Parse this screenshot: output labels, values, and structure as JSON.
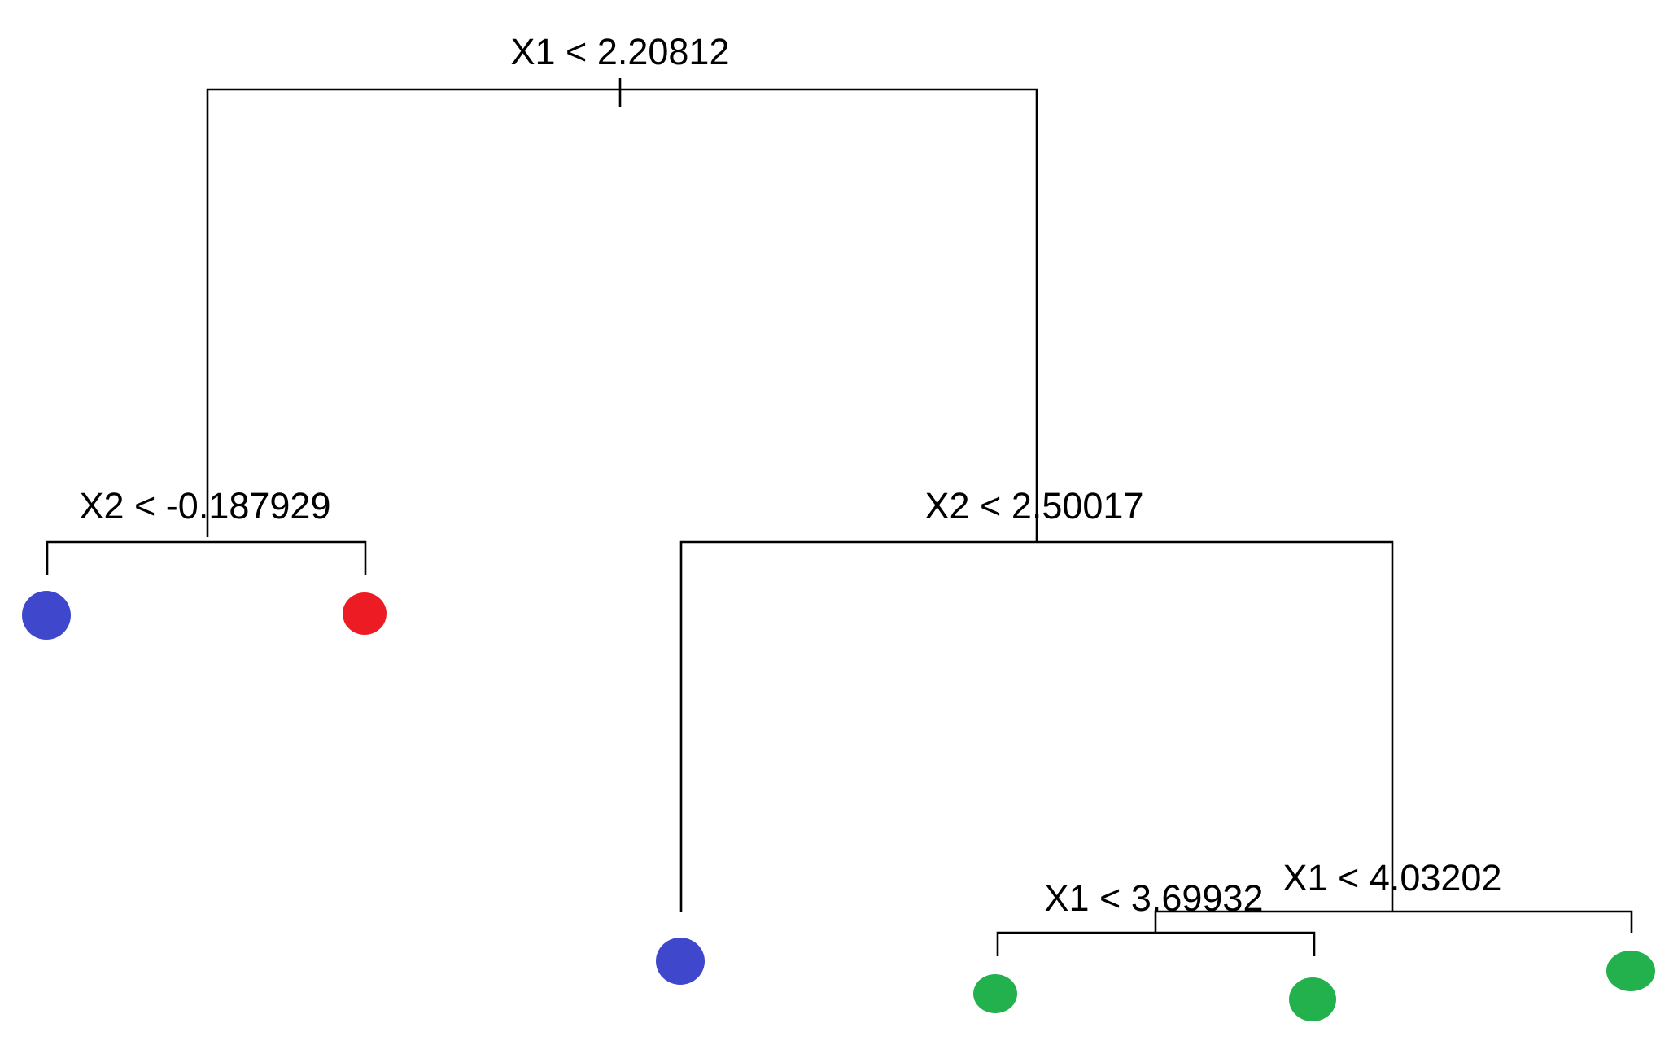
{
  "diagram": {
    "type": "decision-tree",
    "splits": [
      {
        "id": "root",
        "label": "X1 < 2.20812"
      },
      {
        "id": "left",
        "label": "X2 < -0.187929"
      },
      {
        "id": "right",
        "label": "X2 < 2.50017"
      },
      {
        "id": "right-right",
        "label": "X1 < 4.03202"
      },
      {
        "id": "right-right-left",
        "label": "X1 < 3.69932"
      }
    ],
    "leaves": [
      {
        "id": "leaf-1",
        "class": "blue",
        "color": "#3f48cc"
      },
      {
        "id": "leaf-2",
        "class": "red",
        "color": "#ed1c24"
      },
      {
        "id": "leaf-3",
        "class": "blue",
        "color": "#3f48cc"
      },
      {
        "id": "leaf-4",
        "class": "green",
        "color": "#22b14c"
      },
      {
        "id": "leaf-5",
        "class": "green",
        "color": "#22b14c"
      },
      {
        "id": "leaf-6",
        "class": "green",
        "color": "#22b14c"
      }
    ]
  }
}
